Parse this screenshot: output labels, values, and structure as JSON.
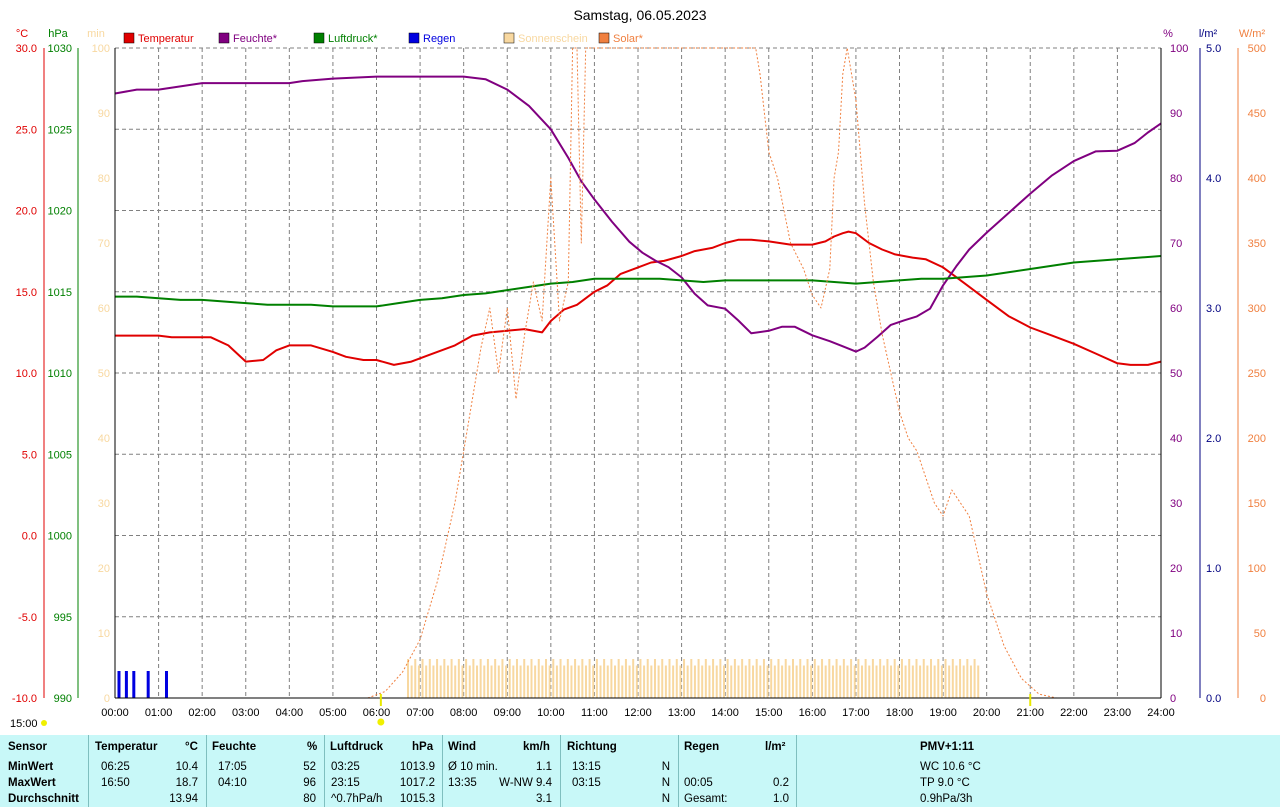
{
  "title": "Samstag, 06.05.2023",
  "axes": {
    "temp_unit": "°C",
    "press_unit": "hPa",
    "sun_unit": "min",
    "hum_unit": "%",
    "rain_unit": "l/m²",
    "solar_unit": "W/m²",
    "temp_ticks": [
      "30.0",
      "25.0",
      "20.0",
      "15.0",
      "10.0",
      "5.0",
      "0.0",
      "-5.0",
      "-10.0"
    ],
    "press_ticks": [
      "1030",
      "1025",
      "1020",
      "1015",
      "1010",
      "1005",
      "1000",
      "995",
      "990"
    ],
    "sun_ticks": [
      "100",
      "90",
      "80",
      "70",
      "60",
      "50",
      "40",
      "30",
      "20",
      "10",
      "0"
    ],
    "hum_ticks": [
      "100",
      "90",
      "80",
      "70",
      "60",
      "50",
      "40",
      "30",
      "20",
      "10",
      "0"
    ],
    "rain_ticks": [
      "5.0",
      "4.0",
      "3.0",
      "2.0",
      "1.0",
      "0.0"
    ],
    "solar_ticks": [
      "500",
      "450",
      "400",
      "350",
      "300",
      "250",
      "200",
      "150",
      "100",
      "50",
      "0"
    ],
    "x_ticks": [
      "00:00",
      "01:00",
      "02:00",
      "03:00",
      "04:00",
      "05:00",
      "06:00",
      "07:00",
      "08:00",
      "09:00",
      "10:00",
      "11:00",
      "12:00",
      "13:00",
      "14:00",
      "15:00",
      "16:00",
      "17:00",
      "18:00",
      "19:00",
      "20:00",
      "21:00",
      "22:00",
      "23:00",
      "24:00"
    ],
    "sunrise_label": "15:00"
  },
  "legend": [
    {
      "label": "Temperatur",
      "color": "#e00000"
    },
    {
      "label": "Feuchte*",
      "color": "#800080"
    },
    {
      "label": "Luftdruck*",
      "color": "#008000"
    },
    {
      "label": "Regen",
      "color": "#0000e0"
    },
    {
      "label": "Sonnenschein",
      "color": "#f8d8a0"
    },
    {
      "label": "Solar*",
      "color": "#f08040"
    }
  ],
  "chart_data": {
    "type": "line",
    "x_unit": "hour",
    "series": [
      {
        "name": "Temperatur",
        "axis": "°C",
        "color": "#e00000",
        "x": [
          0,
          0.5,
          1,
          1.3,
          2,
          2.2,
          2.6,
          3,
          3.4,
          3.7,
          4,
          4.5,
          5,
          5.3,
          5.7,
          6,
          6.4,
          6.8,
          7.2,
          7.8,
          8.2,
          8.6,
          9,
          9.4,
          9.8,
          10,
          10.3,
          10.6,
          11,
          11.3,
          11.6,
          12,
          12.3,
          12.6,
          13,
          13.3,
          13.7,
          14,
          14.3,
          14.6,
          15,
          15.5,
          16,
          16.3,
          16.5,
          16.7,
          16.83,
          17,
          17.3,
          17.6,
          17.9,
          18.3,
          18.6,
          19,
          19.5,
          20,
          20.5,
          21,
          21.5,
          22,
          22.5,
          23,
          23.3,
          23.7,
          24
        ],
        "y": [
          12.3,
          12.3,
          12.3,
          12.2,
          12.2,
          12.2,
          11.7,
          10.7,
          10.8,
          11.4,
          11.7,
          11.7,
          11.3,
          11,
          10.8,
          10.8,
          10.5,
          10.7,
          11.1,
          11.7,
          12.3,
          12.5,
          12.6,
          12.7,
          12.5,
          13.2,
          13.9,
          14.2,
          15,
          15.4,
          16.1,
          16.5,
          16.8,
          16.9,
          17.2,
          17.5,
          17.7,
          18,
          18.2,
          18.2,
          18.1,
          17.9,
          17.9,
          18.1,
          18.4,
          18.6,
          18.7,
          18.6,
          18,
          17.6,
          17.3,
          17.1,
          17,
          16.5,
          15.5,
          14.5,
          13.5,
          12.8,
          12.3,
          11.8,
          11.2,
          10.6,
          10.5,
          10.5,
          10.7
        ]
      },
      {
        "name": "Feuchte*",
        "axis": "%",
        "color": "#800080",
        "x": [
          0,
          0.5,
          1,
          1.5,
          2,
          3,
          4,
          4.3,
          5,
          6,
          7,
          8,
          8.5,
          9,
          9.5,
          10,
          10.4,
          10.7,
          11,
          11.4,
          11.8,
          12.1,
          12.4,
          12.7,
          13,
          13.3,
          13.6,
          14,
          14.3,
          14.6,
          15,
          15.3,
          15.6,
          16,
          16.4,
          16.7,
          17,
          17.2,
          17.5,
          17.8,
          18.1,
          18.4,
          18.7,
          19,
          19.3,
          19.6,
          20,
          20.5,
          21,
          21.5,
          22,
          22.5,
          23,
          23.4,
          23.7,
          24
        ],
        "y": [
          93,
          93.6,
          93.6,
          94.1,
          94.6,
          94.6,
          94.6,
          94.9,
          95.3,
          95.6,
          95.6,
          95.6,
          95.2,
          93.6,
          91.1,
          87.5,
          83.1,
          79.5,
          76.7,
          73.3,
          70.2,
          68.5,
          67.3,
          66.3,
          64.7,
          62.2,
          60.4,
          59.9,
          58.1,
          56.1,
          56.5,
          57.1,
          57.1,
          55.8,
          54.9,
          54.1,
          53.3,
          53.9,
          55.6,
          57.4,
          58.1,
          58.7,
          59.9,
          63.5,
          66.4,
          69,
          71.6,
          74.6,
          77.6,
          80.4,
          82.6,
          84.1,
          84.2,
          85.4,
          87,
          88.4
        ]
      },
      {
        "name": "Luftdruck*",
        "axis": "hPa",
        "color": "#008000",
        "x": [
          0,
          0.5,
          1,
          1.5,
          2,
          2.5,
          3,
          3.5,
          4,
          4.5,
          5,
          5.5,
          6,
          6.5,
          7,
          7.5,
          8,
          8.5,
          9,
          9.5,
          10,
          10.5,
          11,
          11.5,
          12,
          12.5,
          13,
          13.5,
          14,
          14.5,
          15,
          15.5,
          16,
          16.5,
          17,
          17.5,
          18,
          18.5,
          19,
          19.5,
          20,
          20.5,
          21,
          21.5,
          22,
          22.5,
          23,
          23.5,
          24
        ],
        "y": [
          1014.7,
          1014.7,
          1014.6,
          1014.5,
          1014.5,
          1014.4,
          1014.3,
          1014.2,
          1014.2,
          1014.2,
          1014.1,
          1014.1,
          1014.1,
          1014.3,
          1014.5,
          1014.6,
          1014.8,
          1014.9,
          1015.1,
          1015.3,
          1015.5,
          1015.6,
          1015.8,
          1015.8,
          1015.8,
          1015.8,
          1015.7,
          1015.6,
          1015.7,
          1015.7,
          1015.7,
          1015.7,
          1015.7,
          1015.6,
          1015.5,
          1015.6,
          1015.7,
          1015.8,
          1015.8,
          1015.9,
          1016,
          1016.2,
          1016.4,
          1016.6,
          1016.8,
          1016.9,
          1017,
          1017.1,
          1017.2
        ]
      },
      {
        "name": "Solar*",
        "axis": "W/m²",
        "color": "#f08040",
        "x": [
          5.8,
          6.2,
          6.6,
          7,
          7.4,
          7.8,
          8,
          8.2,
          8.4,
          8.6,
          8.8,
          9,
          9.2,
          9.4,
          9.6,
          9.8,
          10,
          10.2,
          10.4,
          10.5,
          10.6,
          10.7,
          10.8,
          11,
          11.2,
          11.5,
          11.8,
          12,
          12.5,
          13,
          13.5,
          14,
          14.5,
          14.7,
          14.8,
          15,
          15.2,
          15.5,
          15.8,
          16,
          16.2,
          16.4,
          16.5,
          16.6,
          16.7,
          16.8,
          17,
          17.2,
          17.4,
          17.6,
          17.8,
          18,
          18.2,
          18.4,
          18.6,
          18.8,
          19,
          19.2,
          19.4,
          19.6,
          19.8,
          20,
          20.4,
          20.8,
          21.2,
          21.6
        ],
        "y": [
          0,
          5,
          20,
          45,
          90,
          150,
          190,
          230,
          270,
          300,
          250,
          300,
          230,
          280,
          320,
          290,
          400,
          290,
          320,
          520,
          600,
          350,
          600,
          550,
          600,
          600,
          560,
          600,
          600,
          560,
          560,
          560,
          540,
          500,
          480,
          420,
          400,
          350,
          330,
          310,
          300,
          330,
          400,
          420,
          480,
          500,
          460,
          380,
          320,
          280,
          250,
          220,
          200,
          190,
          170,
          150,
          140,
          160,
          150,
          140,
          110,
          80,
          40,
          15,
          3,
          0
        ]
      },
      {
        "name": "Sonnenschein",
        "axis": "min",
        "color": "#f8d8a0",
        "type": "bar",
        "from_hour": 6.7,
        "to_hour": 19.8,
        "values_minutes": [
          6,
          5
        ]
      },
      {
        "name": "Regen",
        "axis": "l/m²",
        "color": "#0000e0",
        "type": "bar",
        "x": [
          0.08,
          0.25,
          0.42,
          0.75,
          1.17
        ],
        "y": [
          0.2,
          0.2,
          0.2,
          0.2,
          0.2
        ]
      }
    ],
    "ylim": {
      "°C": [
        -10,
        30
      ],
      "hPa": [
        990,
        1030
      ],
      "%": [
        0,
        100
      ],
      "l/m²": [
        0,
        5
      ],
      "W/m²": [
        0,
        500
      ],
      "min": [
        0,
        100
      ]
    },
    "xlim": [
      0,
      24
    ],
    "grid": true,
    "legend_position": "top"
  },
  "stats": {
    "headers": {
      "sensor": "Sensor",
      "temp": "Temperatur",
      "temp_unit": "°C",
      "hum": "Feuchte",
      "hum_unit": "%",
      "press": "Luftdruck",
      "press_unit": "hPa",
      "wind": "Wind",
      "wind_unit": "km/h",
      "dir": "Richtung",
      "rain": "Regen",
      "rain_unit": "l/m²",
      "pmv": "PMV+1:11"
    },
    "rows": [
      {
        "label": "MinWert",
        "temp_time": "06:25",
        "temp": "10.4",
        "hum_time": "17:05",
        "hum": "52",
        "press_time": "03:25",
        "press": "1013.9",
        "wind_desc": "Ø 10 min.",
        "wind": "1.1",
        "dir_time": "13:15",
        "dir": "N",
        "rain_time": "",
        "rain": "",
        "extra": "WC 10.6 °C"
      },
      {
        "label": "MaxWert",
        "temp_time": "16:50",
        "temp": "18.7",
        "hum_time": "04:10",
        "hum": "96",
        "press_time": "23:15",
        "press": "1017.2",
        "wind_desc": "13:35",
        "wind": "W-NW 9.4",
        "dir_time": "03:15",
        "dir": "N",
        "rain_time": "00:05",
        "rain": "0.2",
        "extra": "TP 9.0 °C"
      },
      {
        "label": "Durchschnitt",
        "temp_time": "",
        "temp": "13.94",
        "hum_time": "",
        "hum": "80",
        "press_time": "^0.7hPa/h",
        "press": "1015.3",
        "wind_desc": "",
        "wind": "3.1",
        "dir_time": "",
        "dir": "N",
        "rain_time": "Gesamt:",
        "rain": "1.0",
        "extra": "0.9hPa/3h"
      }
    ]
  }
}
